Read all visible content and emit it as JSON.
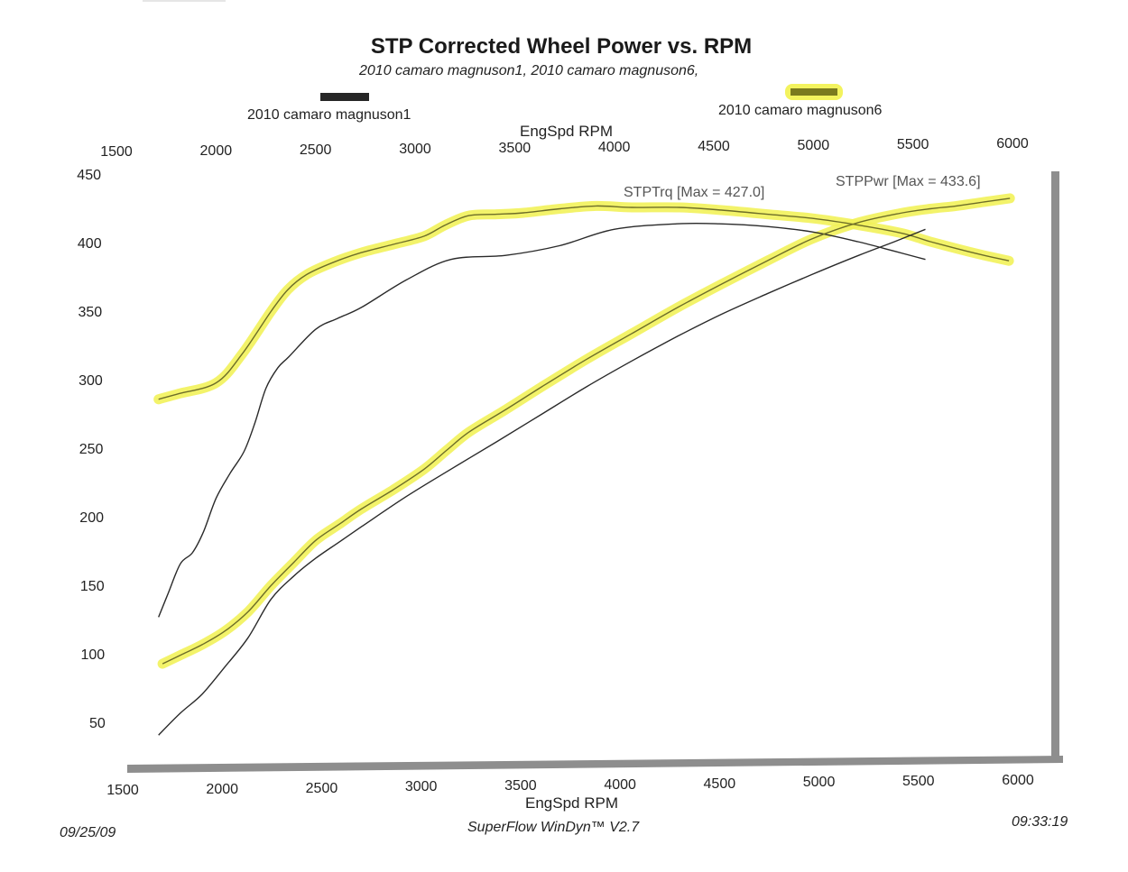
{
  "chart_data": {
    "type": "line",
    "title": "STP Corrected Wheel Power vs. RPM",
    "subtitle": "2010 camaro magnuson1, 2010 camaro magnuson6,",
    "xlabel": "EngSpd  RPM",
    "xlabel_top": "EngSpd  RPM",
    "ylabel": "",
    "xlim": [
      1500,
      6000
    ],
    "ylim": [
      25,
      450
    ],
    "x_ticks": [
      "1500",
      "2000",
      "2500",
      "3000",
      "3500",
      "4000",
      "4500",
      "5000",
      "5500",
      "6000"
    ],
    "x_tick_values": [
      1500,
      2000,
      2500,
      3000,
      3500,
      4000,
      4500,
      5000,
      5500,
      6000
    ],
    "y_ticks": [
      "450",
      "400",
      "350",
      "300",
      "250",
      "200",
      "150",
      "100",
      "50"
    ],
    "y_tick_values": [
      450,
      400,
      350,
      300,
      250,
      200,
      150,
      100,
      50
    ],
    "grid": false,
    "legend_position": "top",
    "legend": [
      {
        "label": "2010 camaro magnuson1",
        "color": "#222222",
        "highlight": false
      },
      {
        "label": "2010 camaro magnuson6",
        "color": "#7a7a1e",
        "highlight": true
      }
    ],
    "annotations": {
      "torque": "STPTrq [Max = 427.0]",
      "power": "STPPwr [Max = 433.6]"
    },
    "series": [
      {
        "name": "2010 camaro magnuson6 STPTrq",
        "run": "2010 camaro magnuson6",
        "quantity": "STPTrq",
        "color": "#6e6e28",
        "highlight": "#f2f25a",
        "x": [
          1680,
          1780,
          1970,
          2100,
          2245,
          2330,
          2425,
          2560,
          2700,
          2860,
          3015,
          3120,
          3240,
          3380,
          3515,
          3700,
          3880,
          4060,
          4300,
          4510,
          4740,
          4965,
          5200,
          5420,
          5560,
          5690,
          5830,
          5955
        ],
        "values": [
          287,
          291,
          299,
          320,
          351,
          367,
          378,
          387,
          394,
          400,
          406,
          414,
          421,
          422,
          423,
          426,
          428,
          427,
          427,
          425,
          422,
          419,
          414,
          408,
          402,
          397,
          392,
          388
        ]
      },
      {
        "name": "2010 camaro magnuson1 STPTrq",
        "run": "2010 camaro magnuson1",
        "quantity": "STPTrq",
        "color": "#2a2a2a",
        "highlight": "",
        "x": [
          1680,
          1730,
          1790,
          1850,
          1905,
          1970,
          2040,
          2110,
          2165,
          2220,
          2280,
          2335,
          2470,
          2580,
          2700,
          2925,
          3150,
          3425,
          3695,
          3970,
          4285,
          4500,
          4740,
          4970,
          5195,
          5380,
          5535
        ],
        "values": [
          128,
          146,
          167,
          175,
          190,
          215,
          233,
          249,
          270,
          295,
          310,
          318,
          338,
          346,
          354,
          374,
          389,
          392,
          399,
          411,
          415,
          415,
          413,
          409,
          402,
          395,
          389
        ]
      },
      {
        "name": "2010 camaro magnuson6 STPPwr",
        "run": "2010 camaro magnuson6",
        "quantity": "STPPwr",
        "color": "#6e6e28",
        "highlight": "#f2f25a",
        "x": [
          1700,
          1800,
          1900,
          2015,
          2130,
          2245,
          2360,
          2470,
          2590,
          2700,
          2860,
          3015,
          3130,
          3240,
          3420,
          3605,
          3830,
          4060,
          4290,
          4510,
          4740,
          4965,
          5200,
          5420,
          5560,
          5690,
          5830,
          5960
        ],
        "values": [
          94,
          101,
          108,
          118,
          132,
          151,
          168,
          184,
          196,
          207,
          221,
          236,
          250,
          263,
          279,
          296,
          316,
          335,
          354,
          371,
          388,
          404,
          416,
          423,
          426,
          428,
          431,
          433.6
        ]
      },
      {
        "name": "2010 camaro magnuson1 STPPwr",
        "run": "2010 camaro magnuson1",
        "quantity": "STPPwr",
        "color": "#2a2a2a",
        "highlight": "",
        "x": [
          1680,
          1790,
          1900,
          2015,
          2130,
          2245,
          2360,
          2470,
          2590,
          2700,
          2925,
          3150,
          3380,
          3605,
          3830,
          4060,
          4290,
          4510,
          4740,
          4965,
          5200,
          5380,
          5535
        ],
        "values": [
          42,
          58,
          72,
          92,
          113,
          141,
          158,
          171,
          183,
          194,
          216,
          236,
          256,
          276,
          296,
          315,
          333,
          349,
          364,
          378,
          392,
          402,
          411
        ]
      }
    ]
  },
  "footer": {
    "date": "09/25/09",
    "software": "SuperFlow WinDyn™ V2.7",
    "time": "09:33:19"
  }
}
